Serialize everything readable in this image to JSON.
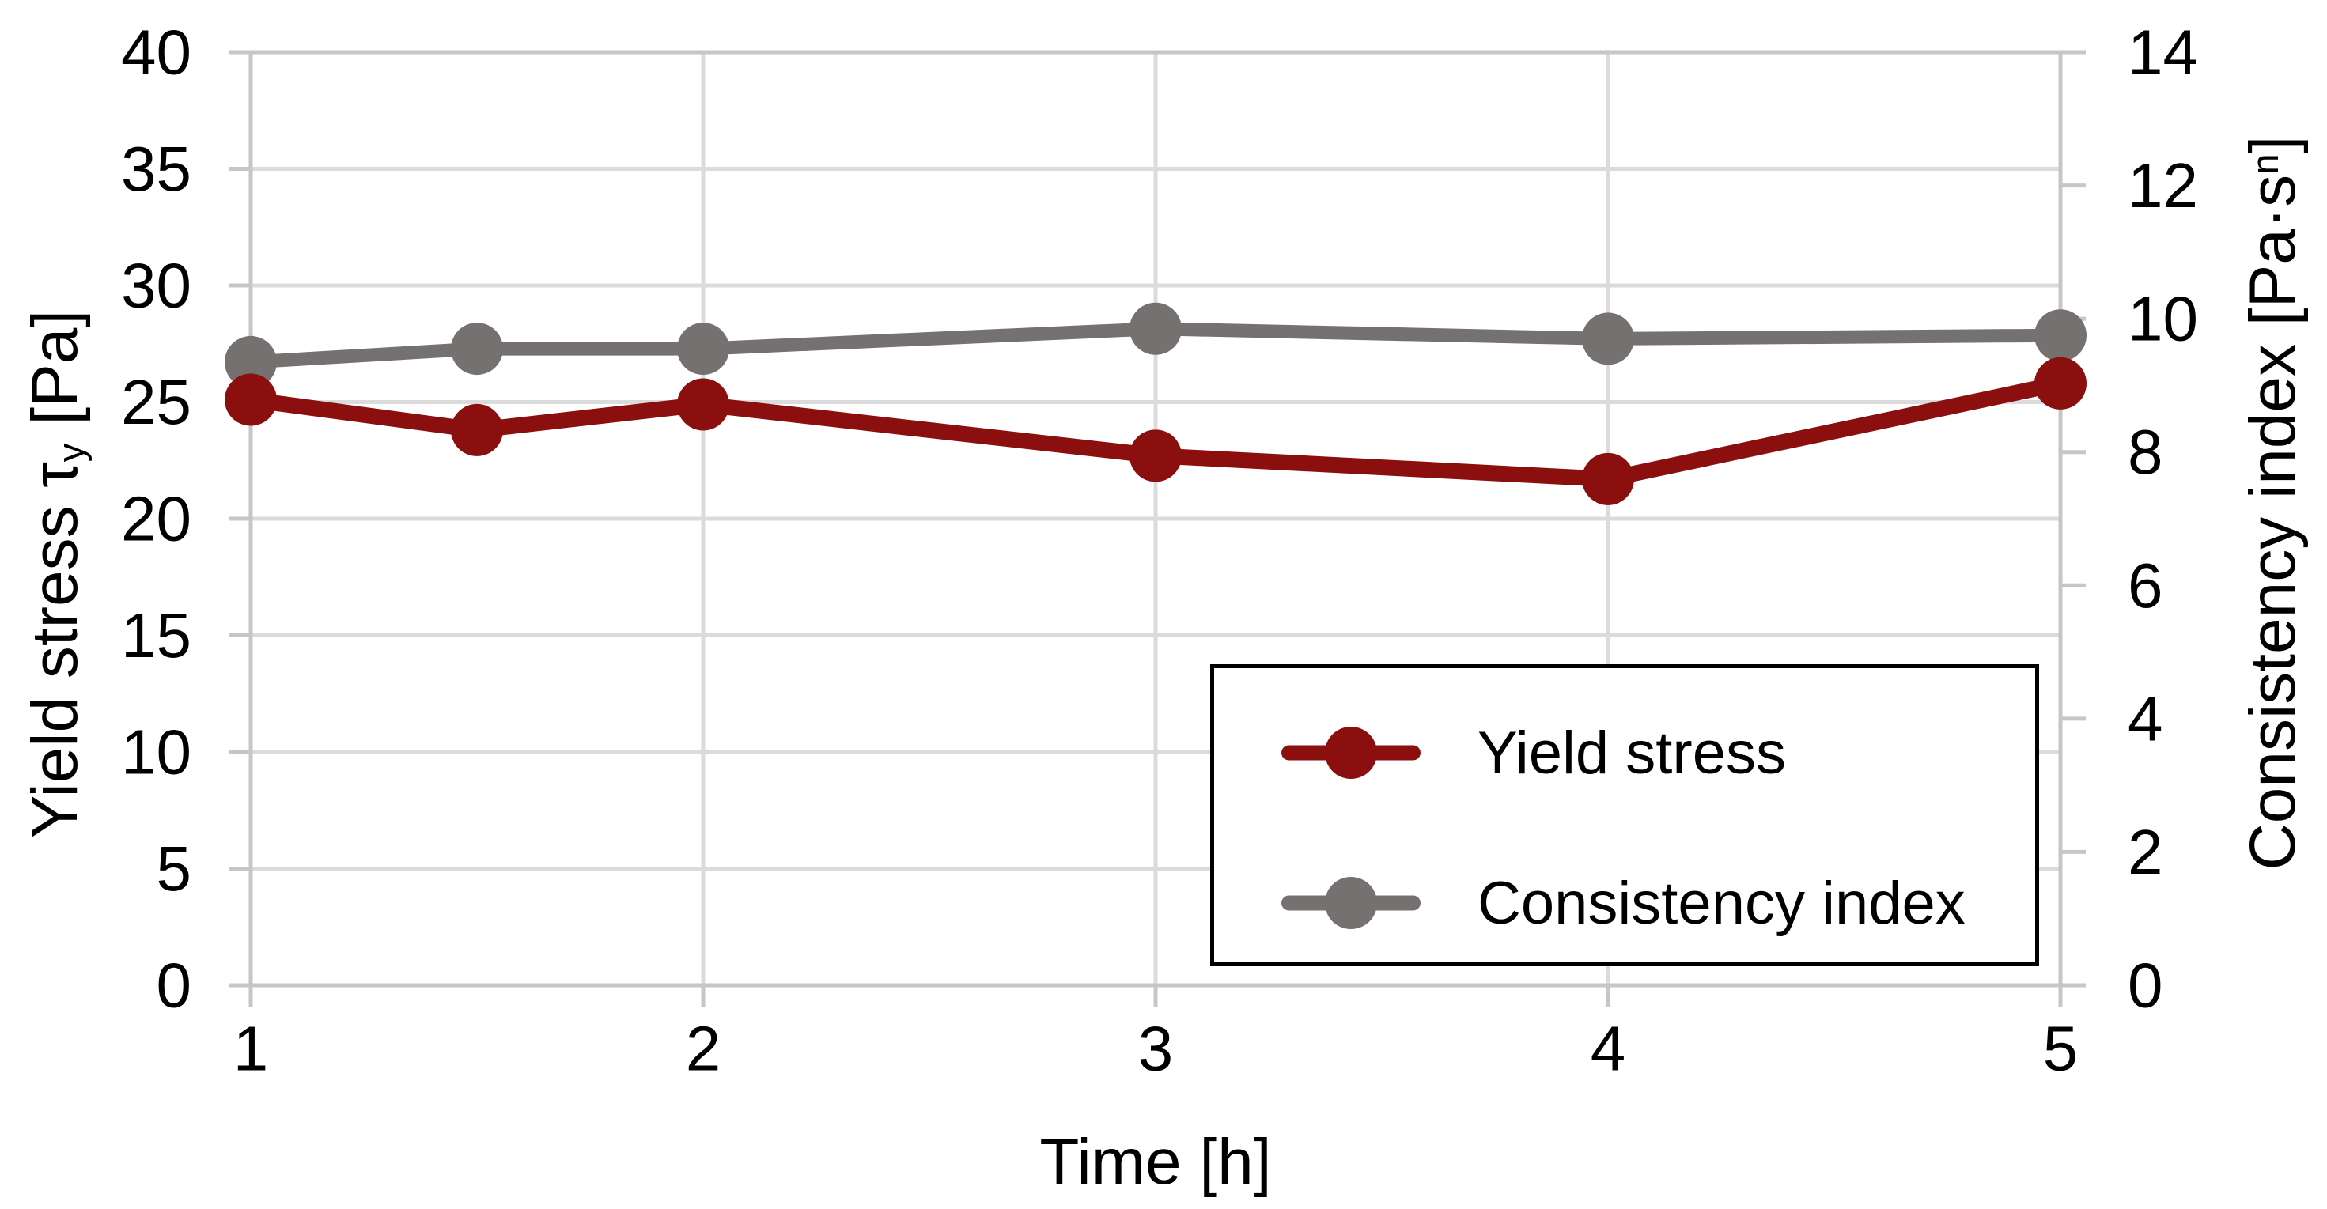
{
  "chart_data": {
    "type": "line",
    "title": "",
    "x": [
      1,
      1.5,
      2,
      3,
      4,
      5
    ],
    "xlim": [
      1,
      5
    ],
    "x_ticks": [
      "1",
      "2",
      "3",
      "4",
      "5"
    ],
    "xlabel": "Time [h]",
    "left_axis": {
      "label": "Yield stress τy [Pa]",
      "label_parts": {
        "main": "Yield stress τ",
        "sub": "y",
        "rest": " [Pa]"
      },
      "lim": [
        0,
        40
      ],
      "ticks": [
        "40",
        "35",
        "30",
        "25",
        "20",
        "15",
        "10",
        "5",
        "0"
      ],
      "tick_values": [
        40,
        35,
        30,
        25,
        20,
        15,
        10,
        5,
        0
      ]
    },
    "right_axis": {
      "label": "Consistency index [Pa·sⁿ]",
      "label_parts": {
        "main": "Consistency index [Pa·s",
        "sup": "n",
        "rest": "]"
      },
      "lim": [
        0,
        14
      ],
      "ticks": [
        "14",
        "12",
        "10",
        "8",
        "6",
        "4",
        "2",
        "0"
      ],
      "tick_values": [
        14,
        12,
        10,
        8,
        6,
        4,
        2,
        0
      ]
    },
    "series": [
      {
        "name": "Consistency index",
        "axis": "right",
        "color": "#767171",
        "marker": "circle",
        "values": [
          9.35,
          9.55,
          9.55,
          9.85,
          9.7,
          9.75
        ]
      },
      {
        "name": "Yield stress",
        "axis": "left",
        "color": "#8B0F0F",
        "marker": "circle",
        "values": [
          25.1,
          23.8,
          24.9,
          22.7,
          21.7,
          25.8
        ]
      }
    ],
    "grid": {
      "horizontal": true,
      "vertical": true
    },
    "legend": {
      "position": "inside-bottom-right",
      "border_color": "#000000",
      "background": "#FFFFFF",
      "entries": [
        "Yield stress",
        "Consistency index"
      ]
    }
  },
  "colors": {
    "background": "#FFFFFF",
    "gridline": "#DBDBDB",
    "axis_line": "#C6C6C6",
    "text": "#000000"
  }
}
